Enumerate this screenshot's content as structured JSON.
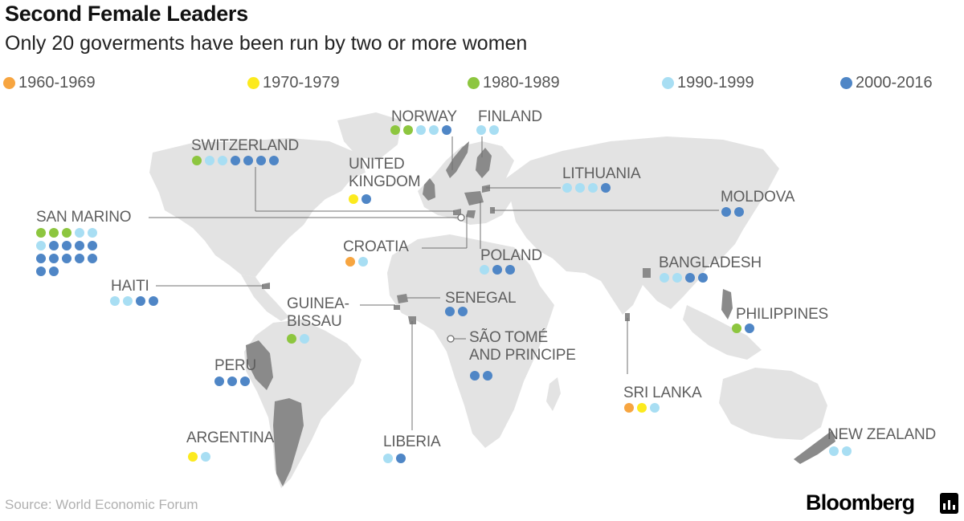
{
  "header": {
    "title": "Second Female Leaders",
    "subtitle": "Only 20 goverments have been run by two or more women"
  },
  "legend": [
    {
      "key": "d1960",
      "label": "1960-1969",
      "color": "#f7a540"
    },
    {
      "key": "d1970",
      "label": "1970-1979",
      "color": "#fcea1e"
    },
    {
      "key": "d1980",
      "label": "1980-1989",
      "color": "#8dc63f"
    },
    {
      "key": "d1990",
      "label": "1990-1999",
      "color": "#a8def3"
    },
    {
      "key": "d2000",
      "label": "2000-2016",
      "color": "#4f86c6"
    }
  ],
  "countries": [
    {
      "id": "norway",
      "label": "NORWAY",
      "dots": [
        "d1980",
        "d1980",
        "d1990",
        "d1990",
        "d2000"
      ]
    },
    {
      "id": "finland",
      "label": "FINLAND",
      "dots": [
        "d1990",
        "d1990"
      ]
    },
    {
      "id": "switzerland",
      "label": "SWITZERLAND",
      "dots": [
        "d1980",
        "d1990",
        "d1990",
        "d2000",
        "d2000",
        "d2000",
        "d2000"
      ]
    },
    {
      "id": "united-kingdom",
      "label": "UNITED\nKINGDOM",
      "dots": [
        "d1970",
        "d2000"
      ]
    },
    {
      "id": "lithuania",
      "label": "LITHUANIA",
      "dots": [
        "d1990",
        "d1990",
        "d1990",
        "d2000"
      ]
    },
    {
      "id": "moldova",
      "label": "MOLDOVA",
      "dots": [
        "d2000",
        "d2000"
      ]
    },
    {
      "id": "san-marino",
      "label": "SAN MARINO",
      "dots": [
        "d1980",
        "d1980",
        "d1980",
        "d1990",
        "d1990",
        "d1990",
        "d2000",
        "d2000",
        "d2000",
        "d2000",
        "d2000",
        "d2000",
        "d2000",
        "d2000",
        "d2000",
        "d2000",
        "d2000"
      ]
    },
    {
      "id": "croatia",
      "label": "CROATIA",
      "dots": [
        "d1960",
        "d1990"
      ]
    },
    {
      "id": "poland",
      "label": "POLAND",
      "dots": [
        "d1990",
        "d2000",
        "d2000"
      ]
    },
    {
      "id": "bangladesh",
      "label": "BANGLADESH",
      "dots": [
        "d1990",
        "d1990",
        "d2000",
        "d2000"
      ]
    },
    {
      "id": "haiti",
      "label": "HAITI",
      "dots": [
        "d1990",
        "d1990",
        "d2000",
        "d2000"
      ]
    },
    {
      "id": "guinea-bissau",
      "label": "GUINEA-\nBISSAU",
      "dots": [
        "d1980",
        "d1990"
      ]
    },
    {
      "id": "senegal",
      "label": "SENEGAL",
      "dots": [
        "d2000",
        "d2000"
      ]
    },
    {
      "id": "philippines",
      "label": "PHILIPPINES",
      "dots": [
        "d1980",
        "d2000"
      ]
    },
    {
      "id": "sao-tome",
      "label": "SÃO TOMÉ\nAND PRINCIPE",
      "dots": [
        "d2000",
        "d2000"
      ]
    },
    {
      "id": "peru",
      "label": "PERU",
      "dots": [
        "d2000",
        "d2000",
        "d2000"
      ]
    },
    {
      "id": "sri-lanka",
      "label": "SRI LANKA",
      "dots": [
        "d1960",
        "d1970",
        "d1990"
      ]
    },
    {
      "id": "argentina",
      "label": "ARGENTINA",
      "dots": [
        "d1970",
        "d1990"
      ]
    },
    {
      "id": "liberia",
      "label": "LIBERIA",
      "dots": [
        "d1990",
        "d2000"
      ]
    },
    {
      "id": "new-zealand",
      "label": "NEW ZEALAND",
      "dots": [
        "d1990",
        "d1990"
      ]
    }
  ],
  "footer": {
    "source": "Source: World Economic Forum",
    "brand": "Bloomberg"
  },
  "colors": {
    "land": "#e3e3e3",
    "highlight": "#8a8a8a",
    "leader": "#707070"
  }
}
